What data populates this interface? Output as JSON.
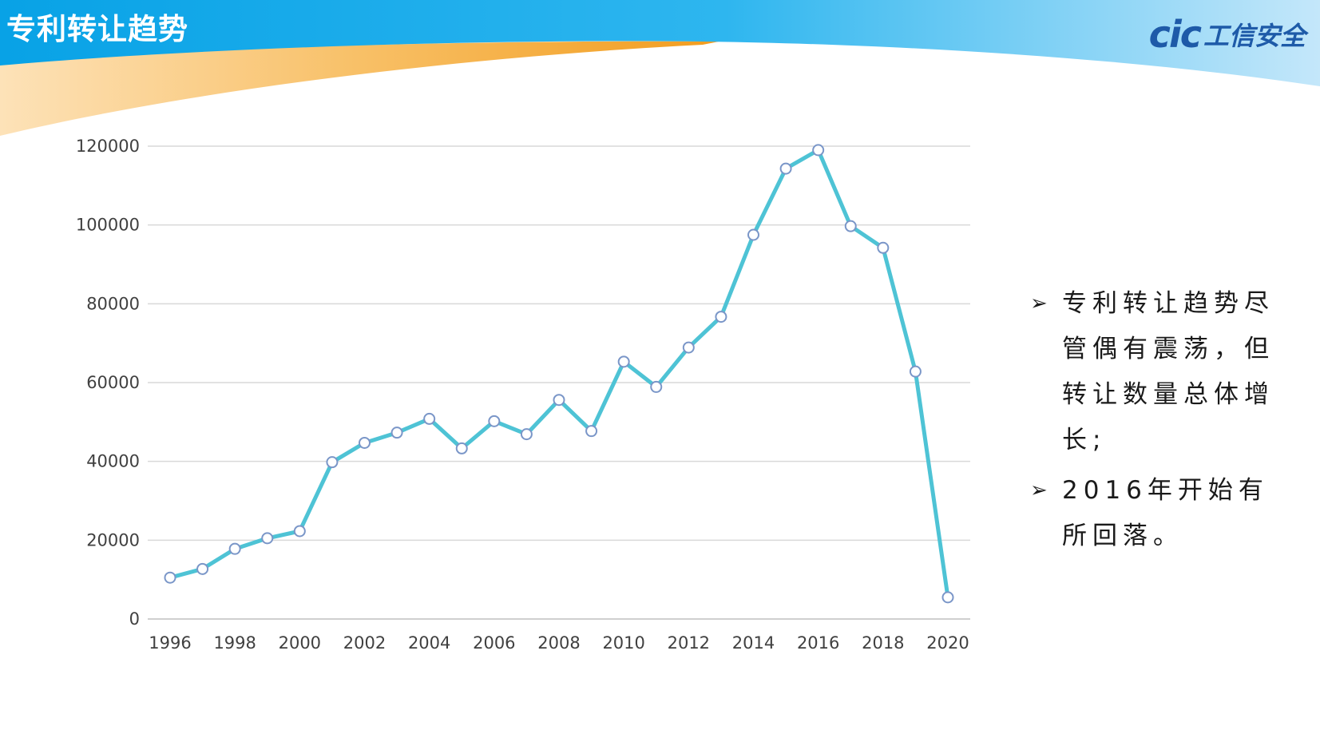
{
  "slide": {
    "title": "专利转让趋势",
    "logo_mark": "cic",
    "logo_text": "工信安全",
    "colors": {
      "header_blue": "#0aa6e8",
      "header_light": "#bfe6fb",
      "accent_orange": "#f3a530",
      "line": "#4ec3d5",
      "logo": "#1e5aa8"
    }
  },
  "bullets": [
    {
      "icon": "arrow-bullet-icon",
      "text": "专利转让趋势尽管偶有震荡，但转让数量总体增长;"
    },
    {
      "icon": "arrow-bullet-icon",
      "text": "2016年开始有所回落。"
    }
  ],
  "chart_data": {
    "type": "line",
    "title": "",
    "xlabel": "",
    "ylabel": "",
    "x": [
      1996,
      1997,
      1998,
      1999,
      2000,
      2001,
      2002,
      2003,
      2004,
      2005,
      2006,
      2007,
      2008,
      2009,
      2010,
      2011,
      2012,
      2013,
      2014,
      2015,
      2016,
      2017,
      2018,
      2019,
      2020
    ],
    "x_tick_labels": [
      "1996",
      "1998",
      "2000",
      "2002",
      "2004",
      "2006",
      "2008",
      "2010",
      "2012",
      "2014",
      "2016",
      "2018",
      "2020"
    ],
    "y_tick_labels": [
      "0",
      "20000",
      "40000",
      "60000",
      "80000",
      "100000",
      "120000"
    ],
    "ylim": [
      0,
      120000
    ],
    "grid": true,
    "legend": "none",
    "series": [
      {
        "values": [
          10500,
          12700,
          17800,
          20500,
          22300,
          39800,
          44700,
          47300,
          50800,
          43300,
          50200,
          46900,
          55600,
          47700,
          65300,
          58900,
          68900,
          76700,
          97500,
          114300,
          119000,
          99700,
          94200,
          62800,
          5500
        ]
      }
    ]
  }
}
